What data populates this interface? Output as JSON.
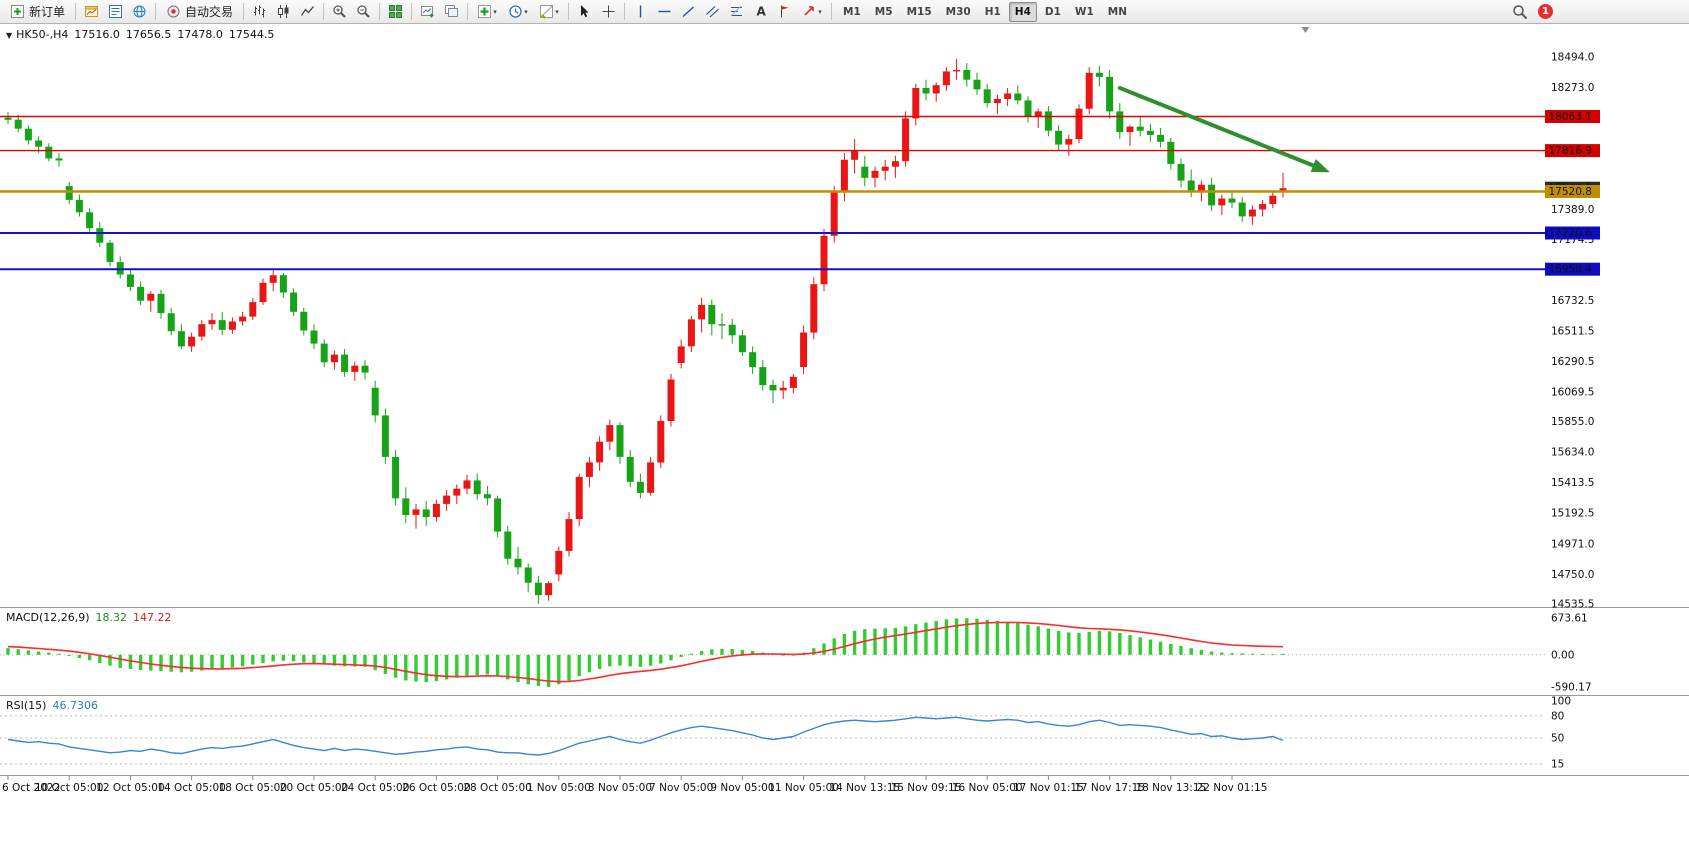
{
  "toolbar": {
    "new_order_label": "新订单",
    "autotrade_label": "自动交易",
    "timeframes": [
      "M1",
      "M5",
      "M15",
      "M30",
      "H1",
      "H4",
      "D1",
      "W1",
      "MN"
    ],
    "active_timeframe": "H4",
    "notification_badge": "1"
  },
  "chart_data": {
    "type": "candlestick",
    "title": "HK50-,H4",
    "symbol": "HK50-",
    "period": "H4",
    "ohlc_display": {
      "open": "17516.0",
      "high": "17656.5",
      "low": "17478.0",
      "close": "17544.5"
    },
    "colors": {
      "up": "#ea1515",
      "down": "#17a317",
      "macd_hist": "#33cc33",
      "macd_signal": "#ff2a2a",
      "rsi_line": "#3586d6",
      "arrow": "#2f8f2f"
    },
    "candles": [
      [
        18055,
        18095,
        18010,
        18040
      ],
      [
        18040,
        18075,
        17950,
        17975
      ],
      [
        17975,
        18000,
        17860,
        17890
      ],
      [
        17890,
        17920,
        17800,
        17845
      ],
      [
        17845,
        17870,
        17740,
        17760
      ],
      [
        17760,
        17800,
        17700,
        17745
      ],
      [
        17560,
        17590,
        17430,
        17460
      ],
      [
        17460,
        17500,
        17340,
        17370
      ],
      [
        17370,
        17400,
        17230,
        17255
      ],
      [
        17255,
        17300,
        17120,
        17150
      ],
      [
        17150,
        17170,
        16980,
        17010
      ],
      [
        17010,
        17050,
        16890,
        16920
      ],
      [
        16920,
        16950,
        16800,
        16830
      ],
      [
        16830,
        16870,
        16700,
        16730
      ],
      [
        16730,
        16800,
        16650,
        16780
      ],
      [
        16780,
        16810,
        16600,
        16640
      ],
      [
        16640,
        16680,
        16480,
        16510
      ],
      [
        16510,
        16560,
        16380,
        16400
      ],
      [
        16400,
        16500,
        16360,
        16470
      ],
      [
        16470,
        16590,
        16440,
        16560
      ],
      [
        16560,
        16640,
        16520,
        16590
      ],
      [
        16590,
        16650,
        16480,
        16520
      ],
      [
        16520,
        16610,
        16490,
        16580
      ],
      [
        16580,
        16650,
        16550,
        16615
      ],
      [
        16615,
        16750,
        16590,
        16720
      ],
      [
        16720,
        16890,
        16700,
        16860
      ],
      [
        16860,
        16950,
        16800,
        16915
      ],
      [
        16915,
        16930,
        16750,
        16790
      ],
      [
        16790,
        16820,
        16620,
        16650
      ],
      [
        16650,
        16680,
        16480,
        16515
      ],
      [
        16515,
        16560,
        16380,
        16420
      ],
      [
        16420,
        16450,
        16250,
        16285
      ],
      [
        16285,
        16370,
        16230,
        16340
      ],
      [
        16340,
        16380,
        16180,
        16215
      ],
      [
        16215,
        16290,
        16150,
        16260
      ],
      [
        16260,
        16300,
        16160,
        16210
      ],
      [
        16100,
        16150,
        15850,
        15900
      ],
      [
        15900,
        15950,
        15550,
        15600
      ],
      [
        15600,
        15650,
        15250,
        15300
      ],
      [
        15300,
        15380,
        15120,
        15180
      ],
      [
        15180,
        15260,
        15080,
        15220
      ],
      [
        15220,
        15280,
        15100,
        15165
      ],
      [
        15165,
        15290,
        15130,
        15260
      ],
      [
        15260,
        15360,
        15210,
        15320
      ],
      [
        15320,
        15400,
        15260,
        15370
      ],
      [
        15370,
        15470,
        15330,
        15430
      ],
      [
        15430,
        15480,
        15290,
        15330
      ],
      [
        15330,
        15390,
        15250,
        15300
      ],
      [
        15300,
        15320,
        15020,
        15060
      ],
      [
        15060,
        15100,
        14820,
        14863
      ],
      [
        14863,
        14950,
        14750,
        14800
      ],
      [
        14800,
        14830,
        14620,
        14690
      ],
      [
        14690,
        14740,
        14537,
        14600
      ],
      [
        14600,
        14700,
        14560,
        14687
      ],
      [
        14750,
        14950,
        14700,
        14920
      ],
      [
        14920,
        15200,
        14880,
        15150
      ],
      [
        15150,
        15480,
        15100,
        15455
      ],
      [
        15455,
        15600,
        15380,
        15560
      ],
      [
        15560,
        15750,
        15500,
        15710
      ],
      [
        15710,
        15870,
        15650,
        15830
      ],
      [
        15830,
        15850,
        15550,
        15600
      ],
      [
        15600,
        15650,
        15380,
        15420
      ],
      [
        15420,
        15480,
        15300,
        15340
      ],
      [
        15340,
        15600,
        15320,
        15560
      ],
      [
        15560,
        15900,
        15520,
        15860
      ],
      [
        15860,
        16200,
        15820,
        16160
      ],
      [
        16280,
        16450,
        16240,
        16400
      ],
      [
        16400,
        16620,
        16360,
        16595
      ],
      [
        16595,
        16750,
        16500,
        16700
      ],
      [
        16700,
        16740,
        16480,
        16560
      ],
      [
        16560,
        16640,
        16450,
        16557
      ],
      [
        16557,
        16600,
        16420,
        16480
      ],
      [
        16480,
        16520,
        16330,
        16358
      ],
      [
        16358,
        16400,
        16200,
        16250
      ],
      [
        16250,
        16300,
        16080,
        16120
      ],
      [
        16120,
        16160,
        15990,
        16081
      ],
      [
        16081,
        16150,
        16020,
        16100
      ],
      [
        16100,
        16200,
        16060,
        16180
      ],
      [
        16250,
        16550,
        16200,
        16500
      ],
      [
        16500,
        16900,
        16450,
        16850
      ],
      [
        16850,
        17250,
        16800,
        17200
      ],
      [
        17200,
        17560,
        17150,
        17520
      ],
      [
        17520,
        17800,
        17450,
        17750
      ],
      [
        17750,
        17900,
        17650,
        17820
      ],
      [
        17700,
        17780,
        17560,
        17620
      ],
      [
        17620,
        17700,
        17550,
        17670
      ],
      [
        17670,
        17750,
        17600,
        17700
      ],
      [
        17700,
        17780,
        17620,
        17740
      ],
      [
        17740,
        18100,
        17700,
        18050
      ],
      [
        18050,
        18300,
        18000,
        18270
      ],
      [
        18270,
        18330,
        18180,
        18230
      ],
      [
        18230,
        18310,
        18170,
        18290
      ],
      [
        18290,
        18420,
        18250,
        18390
      ],
      [
        18390,
        18480,
        18330,
        18400
      ],
      [
        18400,
        18450,
        18280,
        18330
      ],
      [
        18330,
        18380,
        18220,
        18260
      ],
      [
        18260,
        18300,
        18130,
        18160
      ],
      [
        18160,
        18220,
        18080,
        18190
      ],
      [
        18190,
        18270,
        18140,
        18230
      ],
      [
        18230,
        18290,
        18150,
        18180
      ],
      [
        18180,
        18210,
        18020,
        18060
      ],
      [
        18060,
        18120,
        17980,
        18100
      ],
      [
        18100,
        18140,
        17920,
        17960
      ],
      [
        17960,
        18000,
        17820,
        17860
      ],
      [
        17860,
        17930,
        17780,
        17900
      ],
      [
        17900,
        18150,
        17870,
        18120
      ],
      [
        18120,
        18420,
        18080,
        18380
      ],
      [
        18380,
        18430,
        18280,
        18350
      ],
      [
        18350,
        18400,
        18050,
        18100
      ],
      [
        18100,
        18160,
        17900,
        17950
      ],
      [
        17950,
        18000,
        17850,
        17990
      ],
      [
        17990,
        18060,
        17920,
        17960
      ],
      [
        17960,
        18010,
        17880,
        17930
      ],
      [
        17930,
        17980,
        17840,
        17880
      ],
      [
        17880,
        17910,
        17680,
        17720
      ],
      [
        17720,
        17760,
        17550,
        17600
      ],
      [
        17600,
        17680,
        17480,
        17520
      ],
      [
        17520,
        17600,
        17450,
        17570
      ],
      [
        17570,
        17620,
        17380,
        17420
      ],
      [
        17420,
        17500,
        17350,
        17470
      ],
      [
        17470,
        17530,
        17400,
        17440
      ],
      [
        17440,
        17480,
        17300,
        17340
      ],
      [
        17340,
        17420,
        17280,
        17390
      ],
      [
        17390,
        17460,
        17340,
        17430
      ],
      [
        17430,
        17520,
        17400,
        17490
      ],
      [
        17516,
        17656.5,
        17478,
        17544.5
      ]
    ],
    "time_labels": [
      "6 Oct 2022",
      "10 Oct 05:00",
      "12 Oct 05:00",
      "14 Oct 05:00",
      "18 Oct 05:00",
      "20 Oct 05:00",
      "24 Oct 05:00",
      "26 Oct 05:00",
      "28 Oct 05:00",
      "1 Nov 05:00",
      "3 Nov 05:00",
      "7 Nov 05:00",
      "9 Nov 05:00",
      "11 Nov 05:00",
      "14 Nov 13:15",
      "15 Nov 09:15",
      "16 Nov 05:00",
      "17 Nov 01:15",
      "17 Nov 17:15",
      "18 Nov 13:15",
      "22 Nov 01:15"
    ],
    "price_ticks": [
      {
        "label": "18494.0",
        "price": 18494.0
      },
      {
        "label": "18273.0",
        "price": 18273.0
      },
      {
        "label": "17389.0",
        "price": 17389.0
      },
      {
        "label": "17174.5",
        "price": 17174.5
      },
      {
        "label": "16732.5",
        "price": 16732.5
      },
      {
        "label": "16511.5",
        "price": 16511.5
      },
      {
        "label": "16290.5",
        "price": 16290.5
      },
      {
        "label": "16069.5",
        "price": 16069.5
      },
      {
        "label": "15855.0",
        "price": 15855.0
      },
      {
        "label": "15634.0",
        "price": 15634.0
      },
      {
        "label": "15413.5",
        "price": 15413.5
      },
      {
        "label": "15192.5",
        "price": 15192.5
      },
      {
        "label": "14971.0",
        "price": 14971.0
      },
      {
        "label": "14750.0",
        "price": 14750.0
      },
      {
        "label": "14535.5",
        "price": 14535.5
      }
    ],
    "price_badges": [
      {
        "label": "18063.1",
        "price": 18063.1,
        "bg": "#d40000"
      },
      {
        "label": "17816.9",
        "price": 17816.9,
        "bg": "#d40000"
      },
      {
        "label": "17544.5",
        "price": 17544.5,
        "bg": "#2b2b2b"
      },
      {
        "label": "17520.8",
        "price": 17520.8,
        "bg": "#c08f00"
      },
      {
        "label": "17220.6",
        "price": 17220.6,
        "bg": "#0d0dbf"
      },
      {
        "label": "16958.4",
        "price": 16958.4,
        "bg": "#0d0dbf"
      }
    ],
    "hlines": [
      {
        "price": 18063.1,
        "color": "#e60000",
        "width": 1.4
      },
      {
        "price": 17816.9,
        "color": "#e60000",
        "width": 1.4
      },
      {
        "price": 17520.8,
        "color": "#c08f00",
        "width": 2.6
      },
      {
        "price": 17220.6,
        "color": "#1212cc",
        "width": 2
      },
      {
        "price": 16958.4,
        "color": "#1212cc",
        "width": 2
      }
    ],
    "macd": {
      "title": "MACD(12,26,9)",
      "value_main": "18.32",
      "value_signal": "147.22",
      "ticks": [
        {
          "label": "673.61",
          "value": 673.61
        },
        {
          "label": "0.00",
          "value": 0
        },
        {
          "label": "-590.17",
          "value": -590.17
        }
      ],
      "histogram": [
        120,
        100,
        80,
        60,
        40,
        20,
        -20,
        -60,
        -100,
        -150,
        -200,
        -240,
        -260,
        -280,
        -290,
        -300,
        -310,
        -320,
        -310,
        -290,
        -270,
        -250,
        -230,
        -210,
        -180,
        -150,
        -120,
        -110,
        -120,
        -140,
        -160,
        -180,
        -200,
        -210,
        -215,
        -220,
        -280,
        -350,
        -420,
        -470,
        -490,
        -500,
        -480,
        -450,
        -420,
        -390,
        -370,
        -360,
        -400,
        -450,
        -500,
        -540,
        -570,
        -590,
        -540,
        -470,
        -390,
        -320,
        -260,
        -210,
        -200,
        -210,
        -220,
        -200,
        -160,
        -100,
        -40,
        20,
        70,
        100,
        110,
        105,
        90,
        70,
        40,
        10,
        -10,
        -5,
        40,
        120,
        210,
        300,
        380,
        440,
        470,
        480,
        485,
        490,
        520,
        560,
        590,
        620,
        650,
        665,
        670,
        660,
        640,
        620,
        600,
        580,
        550,
        520,
        480,
        440,
        410,
        400,
        420,
        440,
        430,
        400,
        360,
        320,
        280,
        240,
        200,
        160,
        120,
        90,
        60,
        40,
        30,
        24,
        20,
        16,
        14,
        18.32
      ],
      "signal": [
        150,
        140,
        128,
        115,
        100,
        85,
        68,
        45,
        18,
        -12,
        -45,
        -80,
        -112,
        -142,
        -168,
        -192,
        -213,
        -232,
        -246,
        -254,
        -258,
        -258,
        -254,
        -247,
        -235,
        -220,
        -203,
        -186,
        -172,
        -164,
        -162,
        -165,
        -172,
        -179,
        -186,
        -192,
        -208,
        -233,
        -266,
        -302,
        -335,
        -364,
        -384,
        -395,
        -399,
        -397,
        -391,
        -385,
        -388,
        -399,
        -416,
        -437,
        -460,
        -483,
        -493,
        -488,
        -471,
        -444,
        -412,
        -377,
        -346,
        -322,
        -304,
        -286,
        -264,
        -235,
        -201,
        -162,
        -121,
        -82,
        -48,
        -21,
        -2,
        11,
        16,
        15,
        10,
        7,
        13,
        32,
        63,
        104,
        152,
        202,
        249,
        289,
        323,
        352,
        381,
        412,
        443,
        474,
        505,
        533,
        557,
        575,
        586,
        592,
        593,
        591,
        584,
        573,
        557,
        537,
        515,
        495,
        482,
        475,
        467,
        455,
        439,
        418,
        394,
        367,
        338,
        307,
        275,
        243,
        215,
        195,
        180,
        170,
        162,
        156,
        151,
        147.22
      ]
    },
    "rsi": {
      "title": "RSI(15)",
      "value": "46.7306",
      "levels": [
        {
          "label": "100",
          "value": 100
        },
        {
          "label": "80",
          "value": 80
        },
        {
          "label": "50",
          "value": 50
        },
        {
          "label": "15",
          "value": 15
        }
      ],
      "series": [
        48,
        46,
        44,
        45,
        43,
        42,
        38,
        36,
        34,
        32,
        30,
        31,
        33,
        32,
        35,
        33,
        30,
        29,
        32,
        35,
        37,
        36,
        38,
        39,
        42,
        45,
        48,
        44,
        40,
        37,
        35,
        33,
        36,
        33,
        35,
        34,
        32,
        30,
        28,
        29,
        31,
        32,
        34,
        35,
        37,
        38,
        35,
        34,
        31,
        30,
        30,
        28,
        27,
        29,
        33,
        38,
        43,
        46,
        49,
        52,
        48,
        45,
        43,
        47,
        52,
        57,
        61,
        64,
        66,
        64,
        62,
        60,
        57,
        54,
        50,
        48,
        50,
        52,
        58,
        63,
        68,
        71,
        73,
        74,
        73,
        72,
        73,
        74,
        76,
        78,
        77,
        76,
        77,
        78,
        76,
        74,
        73,
        74,
        75,
        74,
        71,
        72,
        69,
        67,
        66,
        68,
        72,
        74,
        71,
        67,
        68,
        67,
        66,
        64,
        61,
        58,
        55,
        56,
        52,
        53,
        50,
        48,
        49,
        50,
        52,
        46.73
      ]
    },
    "arrow": {
      "index1": 109,
      "price1": 18270,
      "index2": 129.6,
      "price2": 17660
    },
    "shift_marker_index": 127.2
  }
}
